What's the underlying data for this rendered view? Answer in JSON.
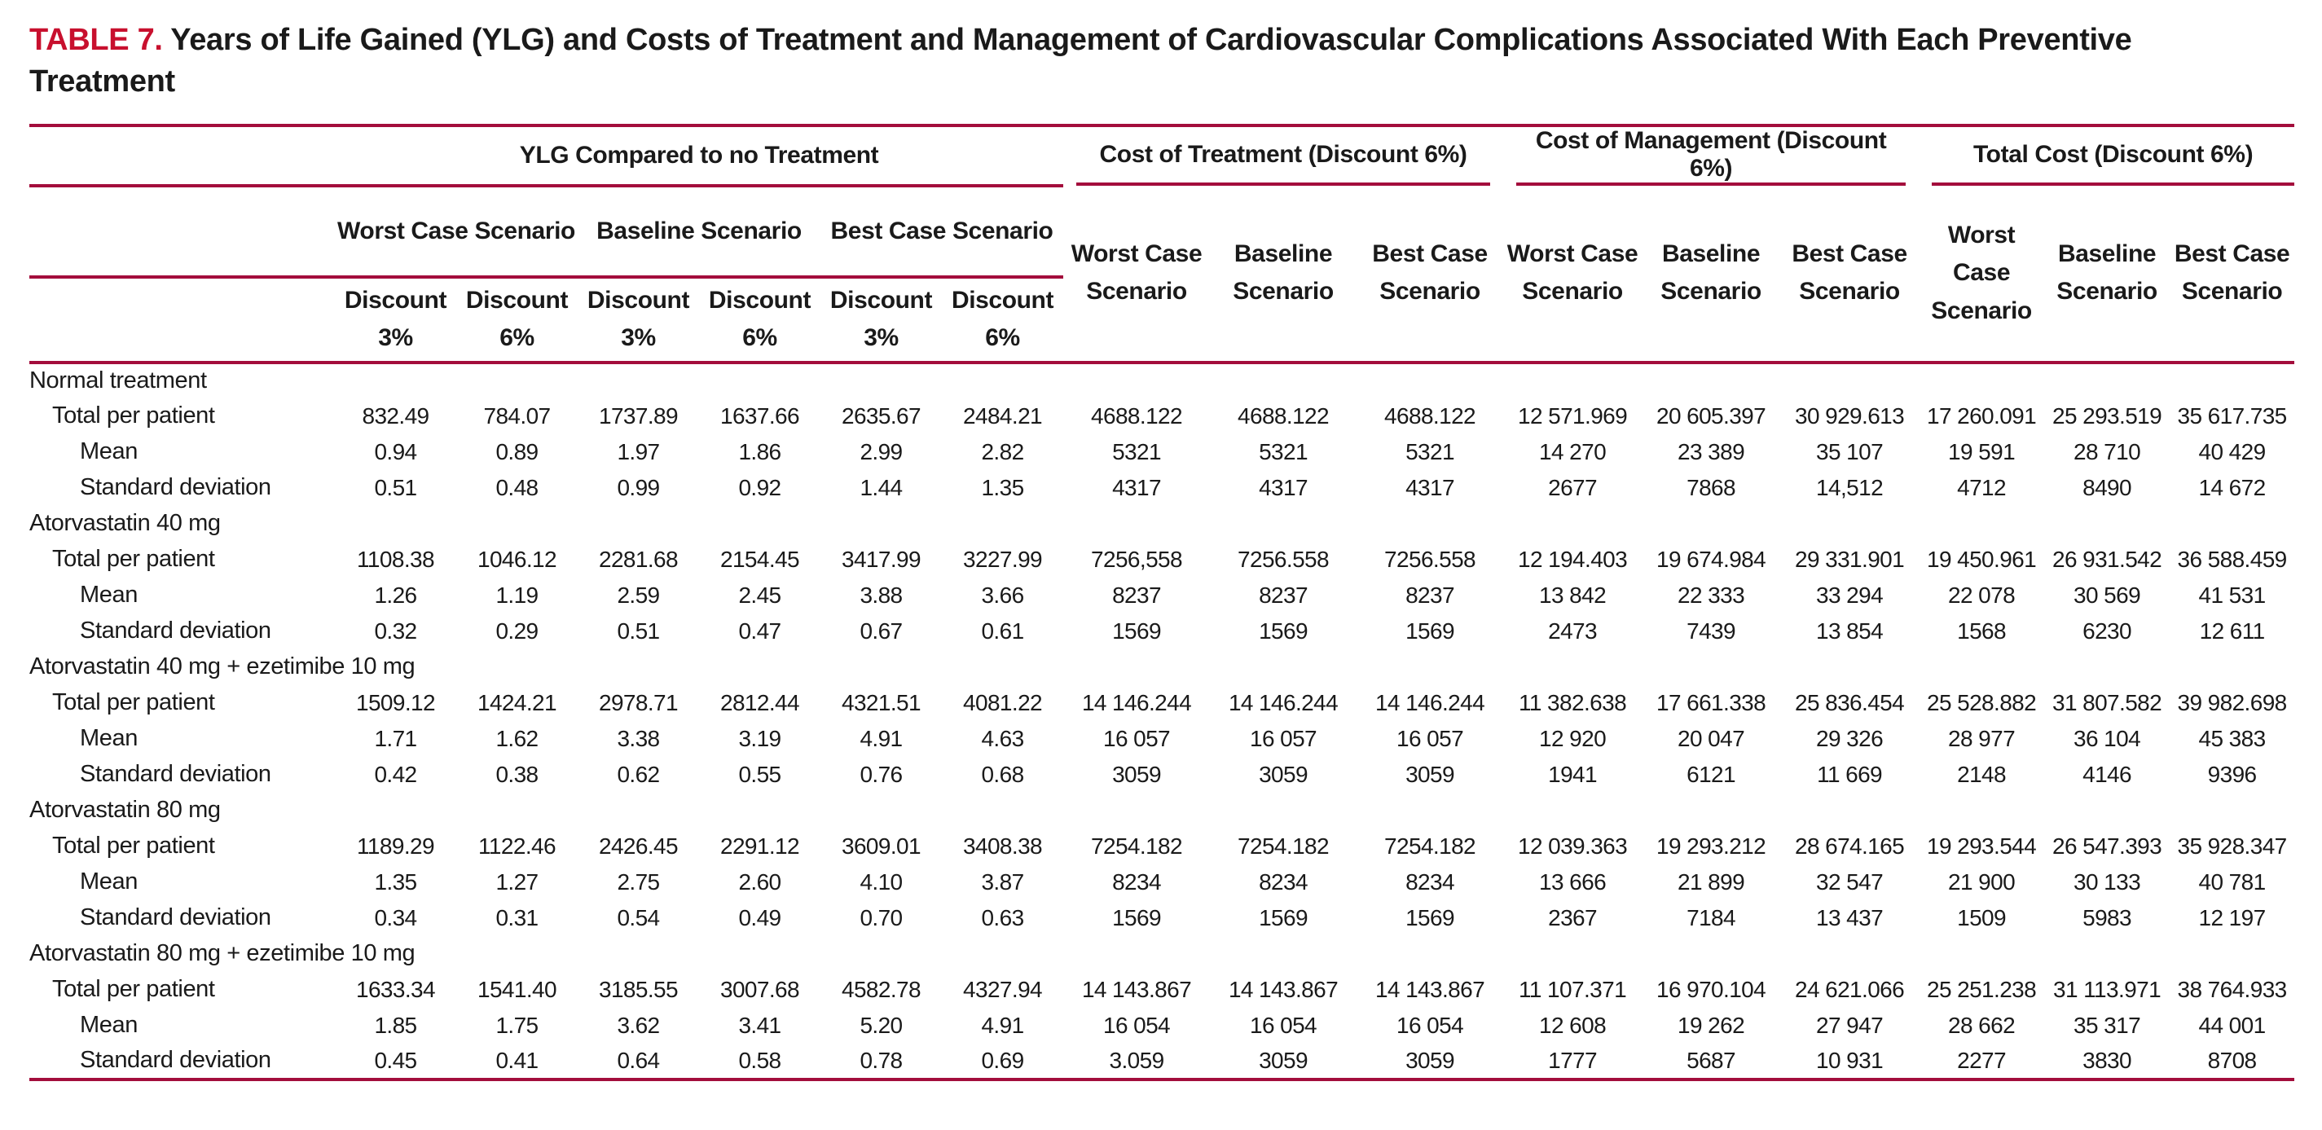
{
  "title": {
    "label": "TABLE 7.",
    "text": "Years of Life Gained (YLG) and Costs of Treatment and Management of Cardiovascular Complications Associated With Each Preventive Treatment"
  },
  "colors": {
    "accent": "#C8102E",
    "rule": "#A30D3C"
  },
  "header": {
    "groups": [
      {
        "label": "YLG Compared to no Treatment"
      },
      {
        "label": "Cost of Treatment (Discount 6%)"
      },
      {
        "label": "Cost of Management (Discount 6%)"
      },
      {
        "label": "Total Cost (Discount 6%)"
      }
    ],
    "ylg_scenarios": [
      "Worst Case Scenario",
      "Baseline Scenario",
      "Best Case Scenario"
    ],
    "cost_scenarios": [
      "Worst Case\nScenario",
      "Baseline\nScenario",
      "Best Case\nScenario"
    ],
    "discounts": [
      "Discount\n3%",
      "Discount\n6%"
    ]
  },
  "row_labels": {
    "total": "Total per patient",
    "mean": "Mean",
    "sd": "Standard deviation"
  },
  "sections": [
    {
      "label": "Normal treatment",
      "rows": [
        {
          "label": "Total per patient",
          "indent": 1,
          "values": [
            "832.49",
            "784.07",
            "1737.89",
            "1637.66",
            "2635.67",
            "2484.21",
            "4688.122",
            "4688.122",
            "4688.122",
            "12 571.969",
            "20 605.397",
            "30 929.613",
            "17 260.091",
            "25 293.519",
            "35 617.735"
          ]
        },
        {
          "label": "Mean",
          "indent": 2,
          "values": [
            "0.94",
            "0.89",
            "1.97",
            "1.86",
            "2.99",
            "2.82",
            "5321",
            "5321",
            "5321",
            "14 270",
            "23 389",
            "35 107",
            "19 591",
            "28 710",
            "40 429"
          ]
        },
        {
          "label": "Standard deviation",
          "indent": 2,
          "values": [
            "0.51",
            "0.48",
            "0.99",
            "0.92",
            "1.44",
            "1.35",
            "4317",
            "4317",
            "4317",
            "2677",
            "7868",
            "14,512",
            "4712",
            "8490",
            "14 672"
          ]
        }
      ]
    },
    {
      "label": "Atorvastatin 40 mg",
      "rows": [
        {
          "label": "Total per patient",
          "indent": 1,
          "values": [
            "1108.38",
            "1046.12",
            "2281.68",
            "2154.45",
            "3417.99",
            "3227.99",
            "7256,558",
            "7256.558",
            "7256.558",
            "12 194.403",
            "19 674.984",
            "29 331.901",
            "19 450.961",
            "26 931.542",
            "36 588.459"
          ]
        },
        {
          "label": "Mean",
          "indent": 2,
          "values": [
            "1.26",
            "1.19",
            "2.59",
            "2.45",
            "3.88",
            "3.66",
            "8237",
            "8237",
            "8237",
            "13 842",
            "22 333",
            "33 294",
            "22 078",
            "30 569",
            "41 531"
          ]
        },
        {
          "label": "Standard deviation",
          "indent": 2,
          "values": [
            "0.32",
            "0.29",
            "0.51",
            "0.47",
            "0.67",
            "0.61",
            "1569",
            "1569",
            "1569",
            "2473",
            "7439",
            "13 854",
            "1568",
            "6230",
            "12 611"
          ]
        }
      ]
    },
    {
      "label": "Atorvastatin 40 mg + ezetimibe 10 mg",
      "rows": [
        {
          "label": "Total per patient",
          "indent": 1,
          "values": [
            "1509.12",
            "1424.21",
            "2978.71",
            "2812.44",
            "4321.51",
            "4081.22",
            "14 146.244",
            "14 146.244",
            "14 146.244",
            "11 382.638",
            "17 661.338",
            "25 836.454",
            "25 528.882",
            "31 807.582",
            "39 982.698"
          ]
        },
        {
          "label": "Mean",
          "indent": 2,
          "values": [
            "1.71",
            "1.62",
            "3.38",
            "3.19",
            "4.91",
            "4.63",
            "16 057",
            "16 057",
            "16 057",
            "12 920",
            "20 047",
            "29 326",
            "28 977",
            "36 104",
            "45 383"
          ]
        },
        {
          "label": "Standard deviation",
          "indent": 2,
          "values": [
            "0.42",
            "0.38",
            "0.62",
            "0.55",
            "0.76",
            "0.68",
            "3059",
            "3059",
            "3059",
            "1941",
            "6121",
            "11 669",
            "2148",
            "4146",
            "9396"
          ]
        }
      ]
    },
    {
      "label": "Atorvastatin 80 mg",
      "rows": [
        {
          "label": "Total per patient",
          "indent": 1,
          "values": [
            "1189.29",
            "1122.46",
            "2426.45",
            "2291.12",
            "3609.01",
            "3408.38",
            "7254.182",
            "7254.182",
            "7254.182",
            "12 039.363",
            "19 293.212",
            "28 674.165",
            "19 293.544",
            "26 547.393",
            "35 928.347"
          ]
        },
        {
          "label": "Mean",
          "indent": 2,
          "values": [
            "1.35",
            "1.27",
            "2.75",
            "2.60",
            "4.10",
            "3.87",
            "8234",
            "8234",
            "8234",
            "13 666",
            "21 899",
            "32 547",
            "21 900",
            "30 133",
            "40 781"
          ]
        },
        {
          "label": "Standard deviation",
          "indent": 2,
          "values": [
            "0.34",
            "0.31",
            "0.54",
            "0.49",
            "0.70",
            "0.63",
            "1569",
            "1569",
            "1569",
            "2367",
            "7184",
            "13 437",
            "1509",
            "5983",
            "12 197"
          ]
        }
      ]
    },
    {
      "label": "Atorvastatin 80 mg + ezetimibe 10 mg",
      "rows": [
        {
          "label": "Total per patient",
          "indent": 1,
          "values": [
            "1633.34",
            "1541.40",
            "3185.55",
            "3007.68",
            "4582.78",
            "4327.94",
            "14 143.867",
            "14 143.867",
            "14 143.867",
            "11 107.371",
            "16 970.104",
            "24 621.066",
            "25 251.238",
            "31 113.971",
            "38 764.933"
          ]
        },
        {
          "label": "Mean",
          "indent": 2,
          "values": [
            "1.85",
            "1.75",
            "3.62",
            "3.41",
            "5.20",
            "4.91",
            "16 054",
            "16 054",
            "16 054",
            "12 608",
            "19 262",
            "27 947",
            "28 662",
            "35 317",
            "44 001"
          ]
        },
        {
          "label": "Standard deviation",
          "indent": 2,
          "values": [
            "0.45",
            "0.41",
            "0.64",
            "0.58",
            "0.78",
            "0.69",
            "3.059",
            "3059",
            "3059",
            "1777",
            "5687",
            "10 931",
            "2277",
            "3830",
            "8708"
          ]
        }
      ]
    }
  ]
}
